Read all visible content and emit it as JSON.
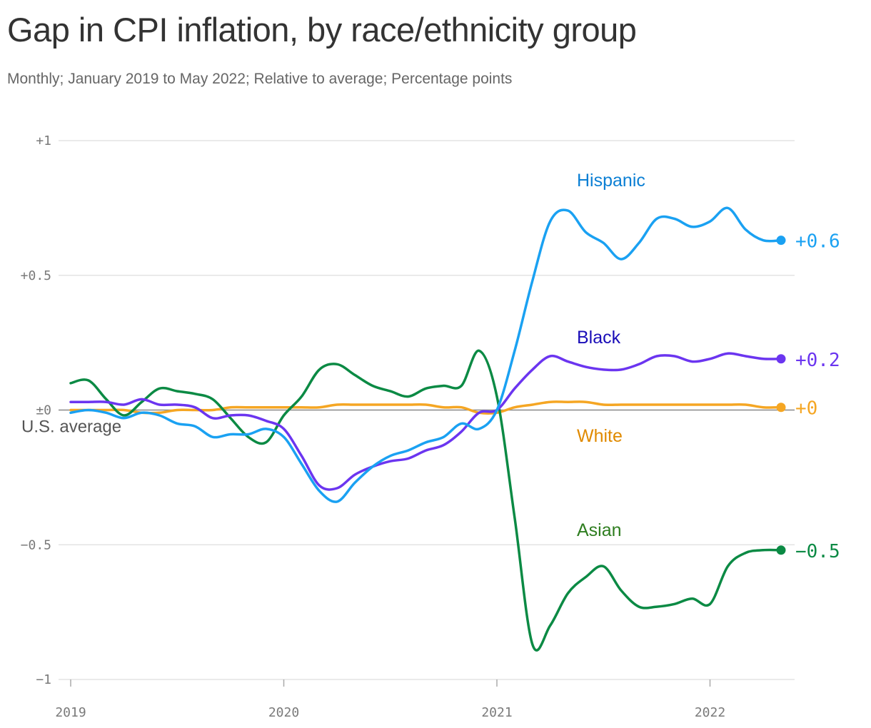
{
  "title": "Gap in CPI inflation, by race/ethnicity group",
  "subtitle": "Monthly; January 2019 to May 2022; Relative to average; Percentage points",
  "reference_label": "U.S. average",
  "colors": {
    "Hispanic": "#1aa1f2",
    "Black": "#6b35f0",
    "White": "#f5a623",
    "Asian": "#0b8a44",
    "grid": "#dedede",
    "baseline": "#888888"
  },
  "chart_data": {
    "type": "line",
    "xlabel": "",
    "ylabel": "",
    "x_range": [
      "2019-01",
      "2022-05"
    ],
    "ylim": [
      -1,
      1
    ],
    "y_ticks": [
      1,
      0.5,
      0,
      -0.5,
      -1
    ],
    "y_tick_labels": [
      "+1",
      "+0.5",
      "±0",
      "−0.5",
      "−1"
    ],
    "x_tick_labels": [
      "2019",
      "2020",
      "2021",
      "2022"
    ],
    "grid": true,
    "legend": "inline labels",
    "series": [
      {
        "name": "Hispanic",
        "label_color": "#0b7fd4",
        "end_label": "+0.6",
        "dates": [
          "2019-01",
          "2019-02",
          "2019-03",
          "2019-04",
          "2019-05",
          "2019-06",
          "2019-07",
          "2019-08",
          "2019-09",
          "2019-10",
          "2019-11",
          "2019-12",
          "2020-01",
          "2020-02",
          "2020-03",
          "2020-04",
          "2020-05",
          "2020-06",
          "2020-07",
          "2020-08",
          "2020-09",
          "2020-10",
          "2020-11",
          "2020-12",
          "2021-01",
          "2021-02",
          "2021-03",
          "2021-04",
          "2021-05",
          "2021-06",
          "2021-07",
          "2021-08",
          "2021-09",
          "2021-10",
          "2021-11",
          "2021-12",
          "2022-01",
          "2022-02",
          "2022-03",
          "2022-04",
          "2022-05"
        ],
        "values": [
          -0.01,
          0.0,
          -0.01,
          -0.03,
          -0.01,
          -0.02,
          -0.05,
          -0.06,
          -0.1,
          -0.09,
          -0.09,
          -0.07,
          -0.1,
          -0.2,
          -0.3,
          -0.34,
          -0.27,
          -0.21,
          -0.17,
          -0.15,
          -0.12,
          -0.1,
          -0.05,
          -0.07,
          0.0,
          0.22,
          0.48,
          0.7,
          0.74,
          0.66,
          0.62,
          0.56,
          0.62,
          0.71,
          0.71,
          0.68,
          0.7,
          0.75,
          0.67,
          0.63,
          0.63
        ]
      },
      {
        "name": "Black",
        "label_color": "#1a0db8",
        "end_label": "+0.2",
        "dates": [
          "2019-01",
          "2019-02",
          "2019-03",
          "2019-04",
          "2019-05",
          "2019-06",
          "2019-07",
          "2019-08",
          "2019-09",
          "2019-10",
          "2019-11",
          "2019-12",
          "2020-01",
          "2020-02",
          "2020-03",
          "2020-04",
          "2020-05",
          "2020-06",
          "2020-07",
          "2020-08",
          "2020-09",
          "2020-10",
          "2020-11",
          "2020-12",
          "2021-01",
          "2021-02",
          "2021-03",
          "2021-04",
          "2021-05",
          "2021-06",
          "2021-07",
          "2021-08",
          "2021-09",
          "2021-10",
          "2021-11",
          "2021-12",
          "2022-01",
          "2022-02",
          "2022-03",
          "2022-04",
          "2022-05"
        ],
        "values": [
          0.03,
          0.03,
          0.03,
          0.02,
          0.04,
          0.02,
          0.02,
          0.01,
          -0.03,
          -0.02,
          -0.02,
          -0.04,
          -0.07,
          -0.17,
          -0.28,
          -0.29,
          -0.24,
          -0.21,
          -0.19,
          -0.18,
          -0.15,
          -0.13,
          -0.08,
          -0.01,
          0.0,
          0.08,
          0.15,
          0.2,
          0.18,
          0.16,
          0.15,
          0.15,
          0.17,
          0.2,
          0.2,
          0.18,
          0.19,
          0.21,
          0.2,
          0.19,
          0.19
        ]
      },
      {
        "name": "White",
        "label_color": "#e08a00",
        "end_label": "+0",
        "dates": [
          "2019-01",
          "2019-02",
          "2019-03",
          "2019-04",
          "2019-05",
          "2019-06",
          "2019-07",
          "2019-08",
          "2019-09",
          "2019-10",
          "2019-11",
          "2019-12",
          "2020-01",
          "2020-02",
          "2020-03",
          "2020-04",
          "2020-05",
          "2020-06",
          "2020-07",
          "2020-08",
          "2020-09",
          "2020-10",
          "2020-11",
          "2020-12",
          "2021-01",
          "2021-02",
          "2021-03",
          "2021-04",
          "2021-05",
          "2021-06",
          "2021-07",
          "2021-08",
          "2021-09",
          "2021-10",
          "2021-11",
          "2021-12",
          "2022-01",
          "2022-02",
          "2022-03",
          "2022-04",
          "2022-05"
        ],
        "values": [
          0.0,
          0.0,
          0.0,
          0.0,
          -0.01,
          -0.01,
          0.0,
          0.0,
          0.0,
          0.01,
          0.01,
          0.01,
          0.01,
          0.01,
          0.01,
          0.02,
          0.02,
          0.02,
          0.02,
          0.02,
          0.02,
          0.01,
          0.01,
          -0.01,
          -0.01,
          0.01,
          0.02,
          0.03,
          0.03,
          0.03,
          0.02,
          0.02,
          0.02,
          0.02,
          0.02,
          0.02,
          0.02,
          0.02,
          0.02,
          0.01,
          0.01
        ]
      },
      {
        "name": "Asian",
        "label_color": "#2e7d1f",
        "end_label": "−0.5",
        "dates": [
          "2019-01",
          "2019-02",
          "2019-03",
          "2019-04",
          "2019-05",
          "2019-06",
          "2019-07",
          "2019-08",
          "2019-09",
          "2019-10",
          "2019-11",
          "2019-12",
          "2020-01",
          "2020-02",
          "2020-03",
          "2020-04",
          "2020-05",
          "2020-06",
          "2020-07",
          "2020-08",
          "2020-09",
          "2020-10",
          "2020-11",
          "2020-12",
          "2021-01",
          "2021-02",
          "2021-03",
          "2021-04",
          "2021-05",
          "2021-06",
          "2021-07",
          "2021-08",
          "2021-09",
          "2021-10",
          "2021-11",
          "2021-12",
          "2022-01",
          "2022-02",
          "2022-03",
          "2022-04",
          "2022-05"
        ],
        "values": [
          0.1,
          0.11,
          0.04,
          -0.02,
          0.03,
          0.08,
          0.07,
          0.06,
          0.04,
          -0.03,
          -0.1,
          -0.12,
          -0.02,
          0.05,
          0.15,
          0.17,
          0.13,
          0.09,
          0.07,
          0.05,
          0.08,
          0.09,
          0.09,
          0.22,
          0.05,
          -0.4,
          -0.87,
          -0.8,
          -0.68,
          -0.62,
          -0.58,
          -0.67,
          -0.73,
          -0.73,
          -0.72,
          -0.7,
          -0.72,
          -0.58,
          -0.53,
          -0.52,
          -0.52
        ]
      }
    ]
  }
}
